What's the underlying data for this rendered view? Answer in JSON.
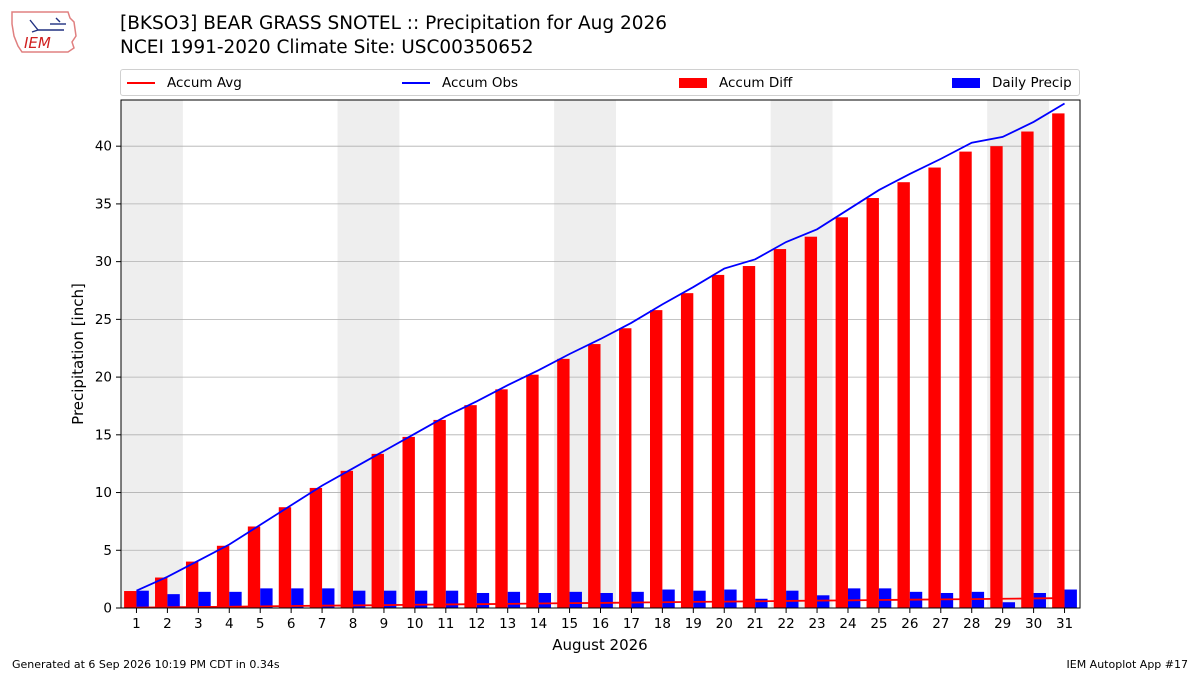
{
  "header": {
    "title_line1": "[BKSO3] BEAR GRASS SNOTEL :: Precipitation for Aug 2026",
    "title_line2": "NCEI 1991-2020 Climate Site: USC00350652",
    "logo_text": "IEM"
  },
  "footer": {
    "generated": "Generated at 6 Sep 2026 10:19 PM CDT in 0.34s",
    "app": "IEM Autoplot App #17"
  },
  "colors": {
    "accum_avg": "#ff0000",
    "accum_obs": "#0000ff",
    "accum_diff": "#ff0000",
    "daily_precip": "#0000ff",
    "weekend_shade": "#eeeeee",
    "grid": "#b0b0b0"
  },
  "chart_data": {
    "type": "bar",
    "xlabel": "August 2026",
    "ylabel": "Precipitation [inch]",
    "ylim": [
      0,
      44
    ],
    "yticks": [
      0,
      5,
      10,
      15,
      20,
      25,
      30,
      35,
      40
    ],
    "grid": "horizontal",
    "legend_position": "top",
    "days": [
      1,
      2,
      3,
      4,
      5,
      6,
      7,
      8,
      9,
      10,
      11,
      12,
      13,
      14,
      15,
      16,
      17,
      18,
      19,
      20,
      21,
      22,
      23,
      24,
      25,
      26,
      27,
      28,
      29,
      30,
      31
    ],
    "shaded_day_ranges": [
      [
        1,
        2
      ],
      [
        8,
        9
      ],
      [
        15,
        16
      ],
      [
        22,
        23
      ],
      [
        29,
        30
      ]
    ],
    "series": [
      {
        "name": "Accum Avg",
        "kind": "line",
        "values": [
          0.03,
          0.06,
          0.08,
          0.11,
          0.14,
          0.17,
          0.2,
          0.22,
          0.25,
          0.28,
          0.31,
          0.33,
          0.36,
          0.39,
          0.42,
          0.44,
          0.47,
          0.5,
          0.53,
          0.55,
          0.58,
          0.61,
          0.64,
          0.66,
          0.69,
          0.72,
          0.75,
          0.77,
          0.8,
          0.83,
          0.86
        ]
      },
      {
        "name": "Accum Obs",
        "kind": "line",
        "values": [
          1.5,
          2.7,
          4.1,
          5.5,
          7.2,
          8.9,
          10.6,
          12.1,
          13.6,
          15.1,
          16.6,
          17.9,
          19.3,
          20.6,
          22.0,
          23.3,
          24.7,
          26.3,
          27.8,
          29.4,
          30.2,
          31.7,
          32.8,
          34.5,
          36.2,
          37.6,
          38.9,
          40.3,
          40.8,
          42.1,
          43.7
        ]
      },
      {
        "name": "Accum Diff",
        "kind": "bar",
        "values": [
          1.47,
          2.64,
          4.02,
          5.39,
          7.06,
          8.73,
          10.4,
          11.88,
          13.35,
          14.82,
          16.29,
          17.57,
          18.94,
          20.21,
          21.58,
          22.86,
          24.23,
          25.8,
          27.27,
          28.85,
          29.62,
          31.09,
          32.16,
          33.84,
          35.51,
          36.88,
          38.15,
          39.53,
          40.0,
          41.27,
          42.84
        ]
      },
      {
        "name": "Daily Precip",
        "kind": "bar",
        "values": [
          1.5,
          1.2,
          1.4,
          1.4,
          1.7,
          1.7,
          1.7,
          1.5,
          1.5,
          1.5,
          1.5,
          1.3,
          1.4,
          1.3,
          1.4,
          1.3,
          1.4,
          1.6,
          1.5,
          1.6,
          0.8,
          1.5,
          1.1,
          1.7,
          1.7,
          1.4,
          1.3,
          1.4,
          0.5,
          1.3,
          1.6
        ]
      }
    ]
  }
}
